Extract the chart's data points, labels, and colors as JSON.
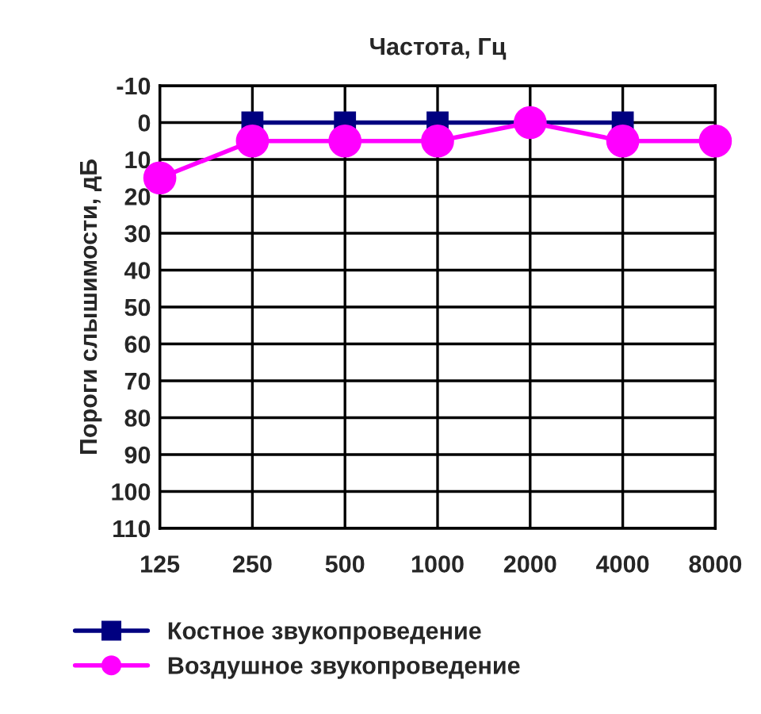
{
  "chart_data": {
    "type": "line",
    "xlabel": "Частота, Гц",
    "ylabel": "Пороги слышимости, дБ",
    "categories": [
      "125",
      "250",
      "500",
      "1000",
      "2000",
      "4000",
      "8000"
    ],
    "series": [
      {
        "name": "Костное звукопроведение",
        "color": "#000080",
        "marker": "square",
        "values": [
          null,
          0,
          0,
          0,
          0,
          0,
          null
        ]
      },
      {
        "name": "Воздушное звукопроведение",
        "color": "#ff00ff",
        "marker": "circle",
        "values": [
          15,
          5,
          5,
          5,
          0,
          5,
          5
        ]
      }
    ],
    "ylim": [
      110,
      -10
    ],
    "yticks": [
      -10,
      0,
      10,
      20,
      30,
      40,
      50,
      60,
      70,
      80,
      90,
      100,
      110
    ],
    "grid": true,
    "legend": "bottom",
    "line_style": "solid"
  }
}
